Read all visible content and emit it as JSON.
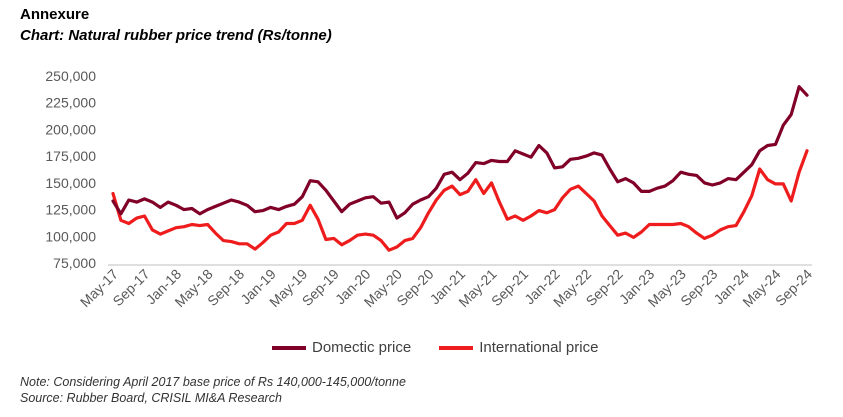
{
  "header": {
    "title": "Annexure",
    "subtitle": "Chart: Natural rubber price trend (Rs/tonne)"
  },
  "colors": {
    "domestic": "#800028",
    "international": "#ee1c1c",
    "axis": "#bfbfbf"
  },
  "chart_data": {
    "type": "line",
    "title": "Chart: Natural rubber price trend (Rs/tonne)",
    "xlabel": "",
    "ylabel": "",
    "ylim": [
      75000,
      250000
    ],
    "yticks": [
      75000,
      100000,
      125000,
      150000,
      175000,
      200000,
      225000,
      250000
    ],
    "ytick_labels": [
      "75,000",
      "100,000",
      "125,000",
      "150,000",
      "175,000",
      "200,000",
      "225,000",
      "250,000"
    ],
    "x_start": "May-17",
    "xtick_labels": [
      "May-17",
      "Sep-17",
      "Jan-18",
      "May-18",
      "Sep-18",
      "Jan-19",
      "May-19",
      "Sep-19",
      "Jan-20",
      "May-20",
      "Sep-20",
      "Jan-21",
      "May-21",
      "Sep-21",
      "Jan-22",
      "May-22",
      "Sep-22",
      "Jan-23",
      "May-23",
      "Sep-23",
      "Jan-24",
      "May-24",
      "Sep-24"
    ],
    "legend_position": "bottom",
    "series": [
      {
        "name": "Domectic price",
        "values": [
          133000,
          121000,
          134000,
          132000,
          135000,
          132000,
          127000,
          132000,
          129000,
          125000,
          126000,
          121000,
          125000,
          128000,
          131000,
          134000,
          132000,
          129000,
          123000,
          124000,
          127000,
          125000,
          128000,
          130000,
          137000,
          152000,
          151000,
          143000,
          133000,
          123000,
          130000,
          133000,
          136000,
          137000,
          131000,
          132000,
          117000,
          122000,
          130000,
          134000,
          137000,
          145000,
          158000,
          160000,
          153000,
          159000,
          169000,
          168000,
          171000,
          170000,
          170000,
          180000,
          177000,
          174000,
          185000,
          178000,
          164000,
          165000,
          172000,
          173000,
          175000,
          178000,
          176000,
          163000,
          151000,
          154000,
          150000,
          142000,
          142000,
          145000,
          147000,
          152000,
          160000,
          158000,
          157000,
          150000,
          148000,
          150000,
          154000,
          153000,
          160000,
          167000,
          180000,
          185000,
          186000,
          204000,
          214000,
          240000,
          232000
        ]
      },
      {
        "name": "International price",
        "values": [
          140000,
          115000,
          112000,
          117000,
          119000,
          106000,
          102000,
          105000,
          108000,
          109000,
          111000,
          110000,
          111000,
          103000,
          96000,
          95000,
          93000,
          93000,
          88000,
          94000,
          101000,
          104000,
          112000,
          112000,
          115000,
          129000,
          116000,
          97000,
          98000,
          92000,
          96000,
          101000,
          102000,
          101000,
          96000,
          87000,
          90000,
          96000,
          98000,
          108000,
          122000,
          134000,
          143000,
          147000,
          139000,
          142000,
          153000,
          140000,
          150000,
          132000,
          116000,
          119000,
          115000,
          119000,
          124000,
          122000,
          125000,
          136000,
          144000,
          147000,
          140000,
          133000,
          119000,
          110000,
          101000,
          103000,
          99000,
          104000,
          111000,
          111000,
          111000,
          111000,
          112000,
          109000,
          103000,
          98000,
          101000,
          106000,
          109000,
          110000,
          123000,
          138000,
          163000,
          153000,
          149000,
          149000,
          133000,
          160000,
          180000
        ]
      }
    ]
  },
  "legend": {
    "domestic_label": "Domectic price",
    "international_label": "International price"
  },
  "footnote": {
    "note": "Note: Considering April 2017 base price of Rs 140,000-145,000/tonne",
    "source": "Source: Rubber Board, CRISIL MI&A Research"
  }
}
